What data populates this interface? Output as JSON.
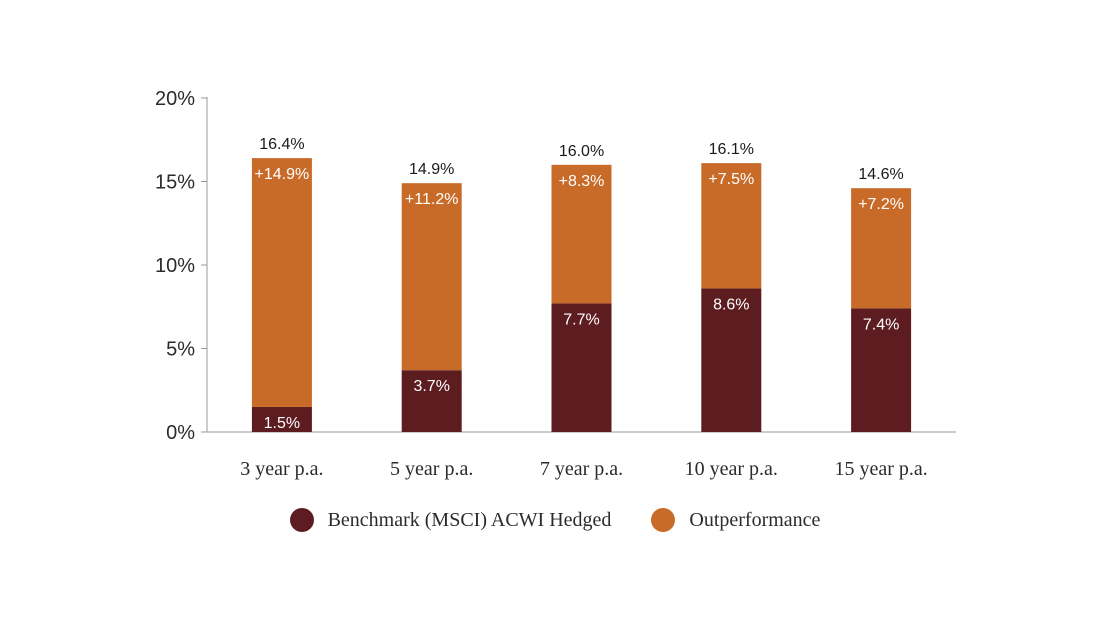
{
  "chart_data": {
    "type": "bar",
    "stacked": true,
    "categories": [
      "3 year p.a.",
      "5 year p.a.",
      "7 year p.a.",
      "10 year p.a.",
      "15 year p.a."
    ],
    "series": [
      {
        "name": "Benchmark (MSCI) ACWI Hedged",
        "color": "#5c1c20",
        "values": [
          1.5,
          3.7,
          7.7,
          8.6,
          7.4
        ],
        "labels": [
          "1.5%",
          "3.7%",
          "7.7%",
          "8.6%",
          "7.4%"
        ]
      },
      {
        "name": "Outperformance",
        "color": "#c96b28",
        "values": [
          14.9,
          11.2,
          8.3,
          7.5,
          7.2
        ],
        "labels": [
          "+14.9%",
          "+11.2%",
          "+8.3%",
          "+7.5%",
          "+7.2%"
        ]
      }
    ],
    "totals": [
      16.4,
      14.9,
      16.0,
      16.1,
      14.6
    ],
    "total_labels": [
      "16.4%",
      "14.9%",
      "16.0%",
      "16.1%",
      "14.6%"
    ],
    "ylim": [
      0,
      20
    ],
    "yticks": [
      0,
      5,
      10,
      15,
      20
    ],
    "ytick_labels": [
      "0%",
      "5%",
      "10%",
      "15%",
      "20%"
    ],
    "grid": false,
    "legend_position": "bottom"
  }
}
